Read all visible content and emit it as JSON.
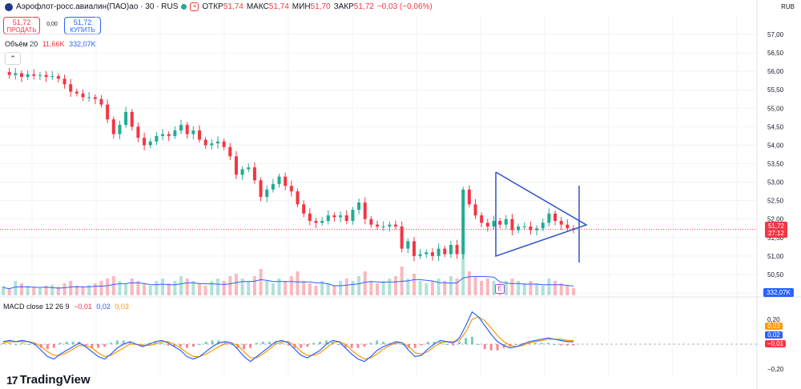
{
  "header": {
    "title": "Аэрофлот-росс.авиалин(ПАО)ао · 30 · RUS",
    "open_label": "ОТКР",
    "open_value": "51,74",
    "high_label": "МАКС",
    "high_value": "51,74",
    "low_label": "МИН",
    "low_value": "51,70",
    "close_label": "ЗАКР",
    "close_value": "51,72",
    "change": "−0,03 (−0,06%)",
    "currency": "RUB"
  },
  "trade": {
    "sell_price": "51,72",
    "sell_label": "ПРОДАТЬ",
    "spread": "0,00",
    "buy_price": "51,72",
    "buy_label": "КУПИТЬ"
  },
  "volume_legend": {
    "name": "Объём 20",
    "value1": "11,66K",
    "value2": "332,07K"
  },
  "collapse_symbol": "⌃",
  "macd_legend": {
    "name": "MACD close 12 26 9",
    "v1": "−0,01",
    "v2": "0,02",
    "v3": "0,03"
  },
  "brand": {
    "name": "TradingView",
    "logo_text": "17"
  },
  "colors": {
    "up": "#22ab94",
    "down": "#f23645",
    "drawing": "#2f52c9",
    "macd": "#2962ff",
    "signal": "#ff9800",
    "volume_ma": "#2962ff"
  },
  "price_axis": {
    "ticks": [
      "57,00",
      "56,50",
      "56,00",
      "55,50",
      "55,00",
      "54,50",
      "54,00",
      "53,50",
      "53,00",
      "52,50",
      "52,00",
      "51,50",
      "51,00",
      "50,50",
      "50,00"
    ],
    "last_price": "51,72",
    "countdown": "27:12",
    "volume_tag": "332,07K"
  },
  "macd_axis": {
    "ticks": [
      "0,20",
      "−0,20"
    ],
    "tag_signal": "0,03",
    "tag_macd": "0,02",
    "tag_hist": "−0,01"
  },
  "event_marker": "E",
  "chart_data": {
    "type": "candlestick",
    "price_path": [
      55.98,
      55.9,
      55.95,
      55.85,
      55.92,
      55.88,
      55.9,
      55.85,
      55.87,
      55.8,
      55.65,
      55.45,
      55.4,
      55.3,
      55.3,
      55.25,
      55.1,
      54.7,
      54.3,
      54.55,
      54.9,
      54.5,
      54.2,
      54.0,
      54.1,
      54.25,
      54.3,
      54.25,
      54.4,
      54.55,
      54.3,
      54.4,
      54.15,
      54.0,
      54.05,
      54.1,
      53.95,
      53.7,
      53.2,
      53.35,
      53.4,
      53.05,
      52.6,
      52.8,
      52.95,
      53.15,
      52.9,
      52.75,
      52.4,
      52.15,
      51.95,
      51.9,
      51.95,
      52.1,
      52.05,
      52.1,
      51.95,
      52.25,
      52.45,
      52.0,
      51.85,
      51.8,
      51.8,
      51.85,
      51.8,
      51.2,
      51.4,
      51.0,
      51.05,
      51.1,
      51.0,
      51.2,
      51.05,
      51.3,
      51.05,
      52.8,
      52.4,
      52.1,
      51.9,
      51.8,
      51.95,
      51.85,
      52.0,
      51.7,
      51.8,
      51.8,
      51.7,
      51.75,
      51.9,
      52.15,
      51.95,
      51.85,
      51.75,
      51.72
    ],
    "volume_relative": [
      0.2,
      0.15,
      0.3,
      0.25,
      0.2,
      0.18,
      0.15,
      0.2,
      0.22,
      0.18,
      0.25,
      0.3,
      0.2,
      0.18,
      0.22,
      0.25,
      0.3,
      0.35,
      0.4,
      0.3,
      0.25,
      0.35,
      0.3,
      0.25,
      0.2,
      0.3,
      0.35,
      0.25,
      0.3,
      0.4,
      0.35,
      0.3,
      0.25,
      0.2,
      0.3,
      0.35,
      0.3,
      0.4,
      0.45,
      0.35,
      0.3,
      0.4,
      0.55,
      0.3,
      0.25,
      0.35,
      0.3,
      0.4,
      0.5,
      0.3,
      0.25,
      0.2,
      0.3,
      0.25,
      0.2,
      0.3,
      0.35,
      0.3,
      0.4,
      0.5,
      0.3,
      0.25,
      0.3,
      0.35,
      0.4,
      0.6,
      0.35,
      0.45,
      0.3,
      0.25,
      0.3,
      0.35,
      0.3,
      0.4,
      0.35,
      1.0,
      0.5,
      0.4,
      0.3,
      0.35,
      0.3,
      0.25,
      0.3,
      0.35,
      0.3,
      0.25,
      0.3,
      0.25,
      0.2,
      0.35,
      0.3,
      0.25,
      0.2,
      0.15
    ],
    "macd_path": [
      0.02,
      0.03,
      0.02,
      0.03,
      0.02,
      0.0,
      -0.05,
      -0.1,
      -0.12,
      -0.08,
      -0.05,
      -0.02,
      0.01,
      -0.02,
      -0.06,
      -0.1,
      -0.12,
      -0.08,
      -0.03,
      0.0,
      0.02,
      0.0,
      -0.02,
      0.0,
      0.02,
      0.03,
      0.01,
      -0.02,
      -0.05,
      -0.1,
      -0.12,
      -0.1,
      -0.06,
      -0.02,
      0.01,
      0.02,
      0.01,
      -0.04,
      -0.1,
      -0.14,
      -0.1,
      -0.06,
      -0.02,
      0.02,
      0.03,
      0.01,
      -0.04,
      -0.09,
      -0.11,
      -0.08,
      -0.05,
      0.0,
      0.03,
      0.02,
      -0.03,
      -0.08,
      -0.12,
      -0.14,
      -0.1,
      -0.05,
      -0.02,
      0.0,
      0.02,
      0.01,
      -0.05,
      -0.1,
      -0.09,
      -0.04,
      0.0,
      0.03,
      0.02,
      0.01,
      0.05,
      0.15,
      0.26,
      0.22,
      0.15,
      0.08,
      0.02,
      -0.01,
      -0.03,
      -0.02,
      0.0,
      0.02,
      0.03,
      0.04,
      0.05,
      0.04,
      0.03,
      0.02,
      0.02
    ],
    "signal_path": [
      0.01,
      0.02,
      0.02,
      0.02,
      0.02,
      0.01,
      -0.02,
      -0.06,
      -0.09,
      -0.09,
      -0.07,
      -0.04,
      -0.01,
      -0.01,
      -0.03,
      -0.07,
      -0.1,
      -0.09,
      -0.06,
      -0.03,
      0.0,
      0.0,
      -0.01,
      -0.01,
      0.0,
      0.02,
      0.02,
      0.0,
      -0.03,
      -0.07,
      -0.1,
      -0.1,
      -0.08,
      -0.05,
      -0.02,
      0.0,
      0.01,
      -0.01,
      -0.06,
      -0.11,
      -0.11,
      -0.08,
      -0.04,
      0.0,
      0.02,
      0.02,
      -0.01,
      -0.06,
      -0.09,
      -0.09,
      -0.07,
      -0.03,
      0.01,
      0.02,
      0.0,
      -0.05,
      -0.09,
      -0.12,
      -0.11,
      -0.08,
      -0.04,
      -0.01,
      0.01,
      0.01,
      -0.02,
      -0.07,
      -0.08,
      -0.06,
      -0.02,
      0.01,
      0.02,
      0.02,
      0.03,
      0.1,
      0.2,
      0.22,
      0.19,
      0.13,
      0.07,
      0.02,
      -0.01,
      -0.02,
      -0.01,
      0.01,
      0.02,
      0.03,
      0.04,
      0.04,
      0.04,
      0.03,
      0.03
    ],
    "price_range": [
      50.0,
      57.0
    ],
    "macd_range": [
      -0.2,
      0.2
    ]
  }
}
